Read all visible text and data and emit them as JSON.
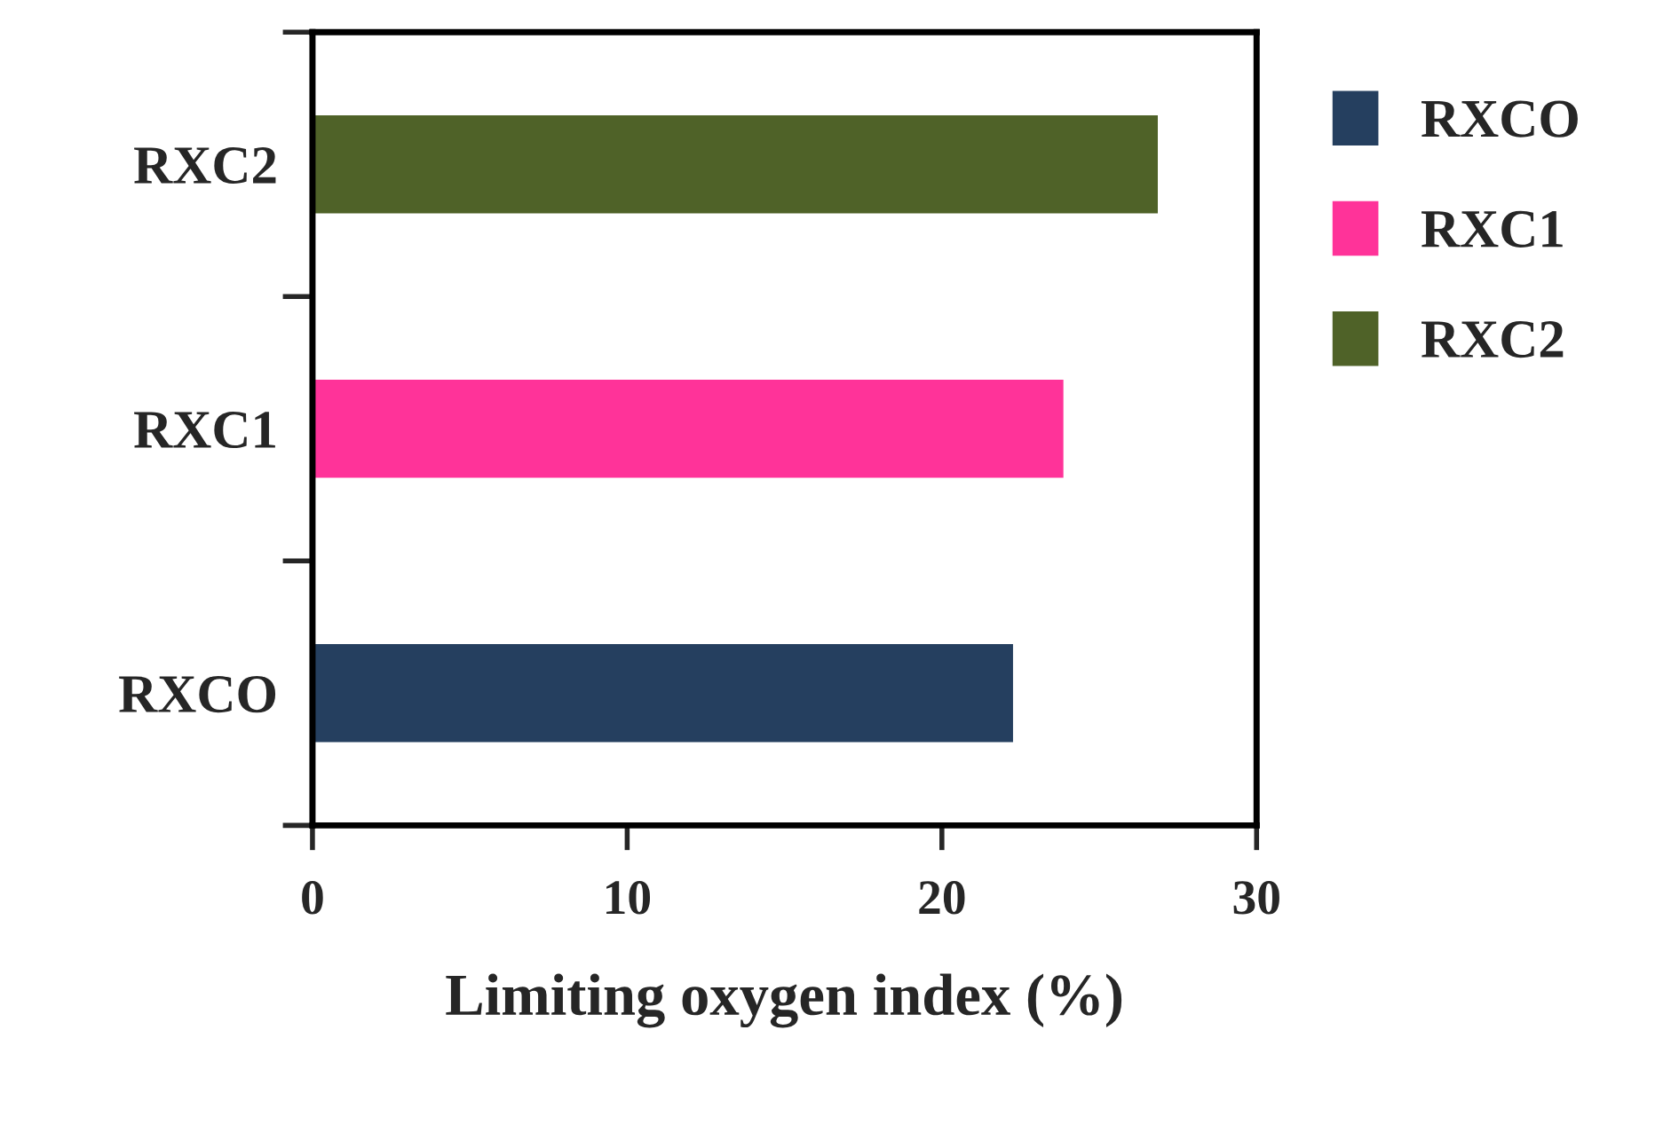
{
  "chart_data": {
    "type": "bar",
    "orientation": "horizontal",
    "xlabel": "Limiting oxygen index (%)",
    "categories": [
      "RXC2",
      "RXC1",
      "RXCO"
    ],
    "series": [
      {
        "name": "RXCO",
        "color": "#253f5f",
        "values": [
          null,
          null,
          22.3
        ]
      },
      {
        "name": "RXC1",
        "color": "#ff3399",
        "values": [
          null,
          23.9,
          null
        ]
      },
      {
        "name": "RXC2",
        "color": "#4f6228",
        "values": [
          26.9,
          null,
          null
        ]
      }
    ],
    "xlim": [
      0,
      30
    ],
    "xticks": [
      0,
      10,
      20,
      30
    ],
    "grid": false,
    "legend": "right"
  }
}
